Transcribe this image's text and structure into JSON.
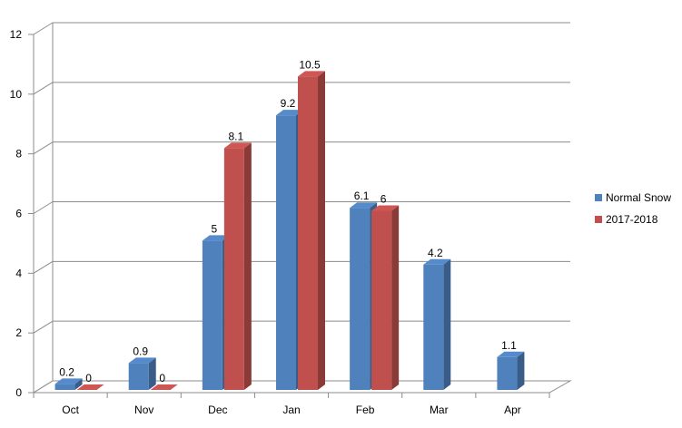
{
  "chart_data": {
    "type": "bar",
    "categories": [
      "Oct",
      "Nov",
      "Dec",
      "Jan",
      "Feb",
      "Mar",
      "Apr"
    ],
    "series": [
      {
        "name": "Normal Snow",
        "values": [
          0.2,
          0.9,
          5,
          9.2,
          6.1,
          4.2,
          1.1
        ],
        "labels": [
          "0.2",
          "0.9",
          "5",
          "9.2",
          "6.1",
          "4.2",
          "1.1"
        ],
        "color": "#4F81BD"
      },
      {
        "name": "2017-2018",
        "values": [
          0,
          0,
          8.1,
          10.5,
          6,
          null,
          null
        ],
        "labels": [
          "0",
          "0",
          "8.1",
          "10.5",
          "6",
          null,
          null
        ],
        "color": "#C0504D"
      }
    ],
    "yticks": [
      "0",
      "2",
      "4",
      "6",
      "8",
      "10",
      "12"
    ],
    "ylim": [
      0,
      12
    ],
    "title": "",
    "xlabel": "",
    "ylabel": "",
    "grid": true,
    "legend_position": "right",
    "style": "3d"
  }
}
